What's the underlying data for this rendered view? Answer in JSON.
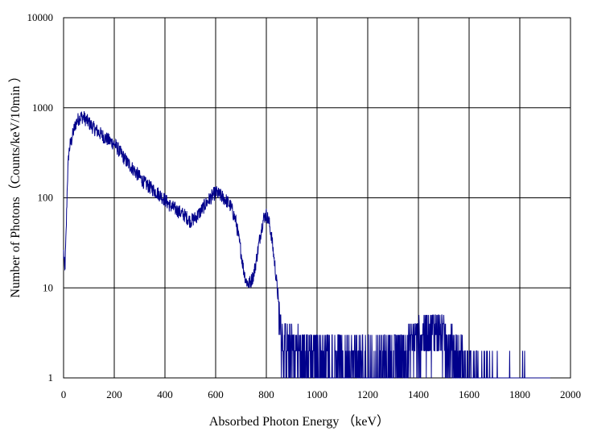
{
  "chart_data": {
    "type": "line",
    "title": "",
    "xlabel": "Absorbed Photon Energy （keV）",
    "ylabel": "Number  of Photons（Counts/keV/10min ）",
    "xlim": [
      0,
      2000
    ],
    "ylim": [
      1,
      10000
    ],
    "y_scale": "log",
    "grid": true,
    "legend": "none",
    "x_ticks": [
      "0",
      "200",
      "400",
      "600",
      "800",
      "1000",
      "1200",
      "1400",
      "1600",
      "1800",
      "2000"
    ],
    "y_ticks": [
      "1",
      "10",
      "100",
      "1000",
      "10000"
    ],
    "series": [
      {
        "color": "#00008B",
        "x": [
          0,
          5,
          10,
          15,
          20,
          25,
          30,
          40,
          50,
          60,
          70,
          80,
          100,
          120,
          150,
          180,
          200,
          220,
          250,
          280,
          300,
          320,
          350,
          380,
          400,
          420,
          450,
          480,
          500,
          520,
          540,
          560,
          580,
          600,
          620,
          640,
          660,
          680,
          700,
          710,
          720,
          730,
          740,
          750,
          760,
          770,
          780,
          790,
          800,
          810,
          820,
          830,
          840,
          850,
          860,
          870,
          900,
          950,
          1000,
          1050,
          1100,
          1150,
          1200,
          1250,
          1300,
          1350,
          1400,
          1430,
          1460,
          1480,
          1500,
          1520,
          1550,
          1600,
          1650,
          1700,
          1750,
          1800,
          1850,
          1900,
          1920
        ],
        "y": [
          25,
          15,
          40,
          150,
          300,
          380,
          420,
          560,
          690,
          760,
          800,
          780,
          680,
          590,
          500,
          430,
          400,
          330,
          250,
          200,
          170,
          145,
          125,
          108,
          95,
          82,
          72,
          63,
          55,
          60,
          70,
          85,
          100,
          115,
          105,
          95,
          80,
          55,
          25,
          16,
          12,
          11,
          12,
          14,
          20,
          30,
          45,
          60,
          65,
          55,
          38,
          22,
          12,
          6,
          3.5,
          3,
          2.6,
          2.4,
          2.3,
          2.2,
          2.1,
          2.0,
          2.0,
          2.0,
          2.2,
          2.6,
          3.5,
          3.8,
          4.0,
          3.8,
          3.4,
          2.8,
          2.0,
          1.6,
          1.3,
          1.2,
          1.1,
          1.1,
          1.05,
          1.0,
          1.0
        ]
      }
    ]
  }
}
